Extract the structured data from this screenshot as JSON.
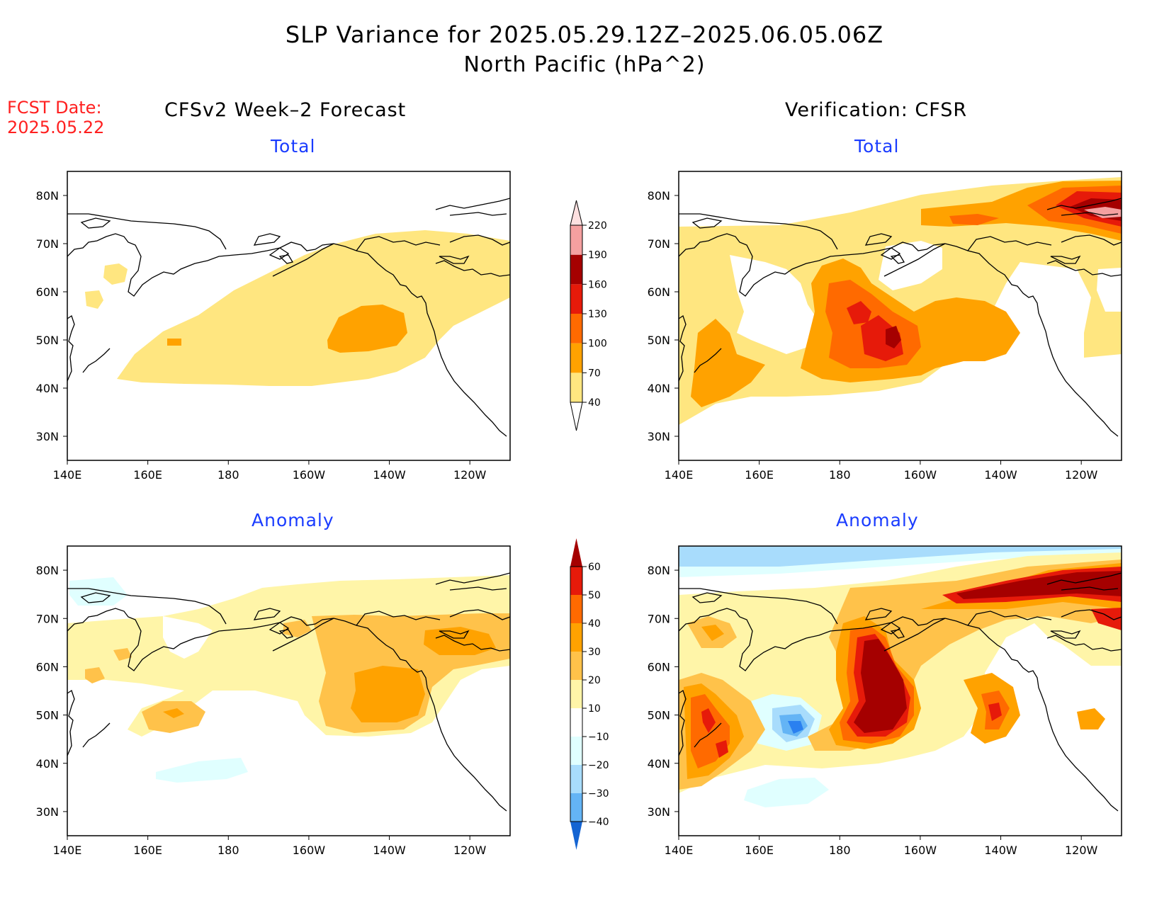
{
  "title": {
    "line1": "SLP Variance for 2025.05.29.12Z–2025.06.05.06Z",
    "line2": "North Pacific (hPa^2)"
  },
  "fcst_date": {
    "label": "FCST Date:",
    "value": "2025.05.22"
  },
  "columns": {
    "left": "CFSv2 Week–2 Forecast",
    "right": "Verification: CFSR"
  },
  "panels": {
    "top_left_title": "Total",
    "top_right_title": "Total",
    "bottom_left_title": "Anomaly",
    "bottom_right_title": "Anomaly"
  },
  "axes": {
    "lat_labels": [
      "80N",
      "70N",
      "60N",
      "50N",
      "40N",
      "30N"
    ],
    "lon_labels": [
      "140E",
      "160E",
      "180",
      "160W",
      "140W",
      "120W"
    ]
  },
  "colorbars": {
    "total": {
      "levels": [
        "40",
        "70",
        "100",
        "130",
        "160",
        "190",
        "220"
      ],
      "colors": [
        "#ffe680",
        "#ffa200",
        "#ff6a00",
        "#e61a0a",
        "#a50000",
        "#f5a0a0",
        "#fde0e0"
      ]
    },
    "anomaly": {
      "levels": [
        "60",
        "50",
        "40",
        "30",
        "20",
        "10",
        "−10",
        "−20",
        "−30",
        "−40"
      ],
      "colors": [
        "#a50000",
        "#e61a0a",
        "#ff6a00",
        "#ffa200",
        "#ffc24a",
        "#fff5a8",
        "#ffffff",
        "#e0ffff",
        "#a8dcfc",
        "#64b4f5",
        "#2a80f0",
        "#1464d2"
      ]
    }
  },
  "colors": {
    "title_blue": "#1a3cff",
    "fcst_red": "#ff2020"
  }
}
